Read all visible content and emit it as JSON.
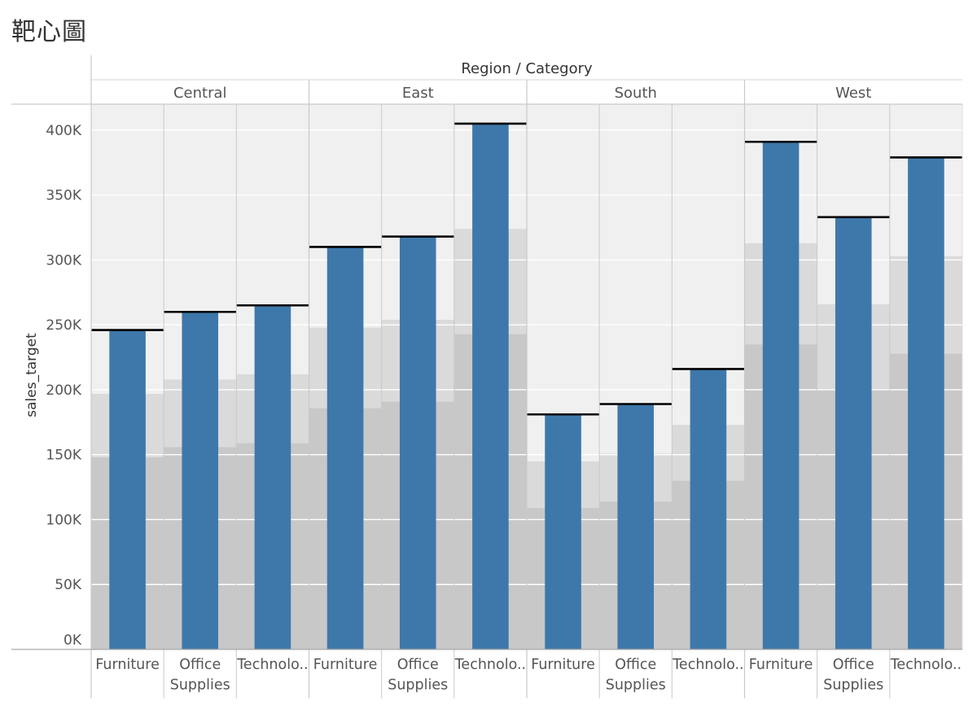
{
  "title": "靶心圖",
  "chart_data": {
    "type": "bar",
    "title": "靶心圖",
    "header_title": "Region / Category",
    "ylabel": "sales_target",
    "ylim": [
      0,
      420000
    ],
    "y_ticks": [
      0,
      50000,
      100000,
      150000,
      200000,
      250000,
      300000,
      350000,
      400000
    ],
    "y_tick_labels": [
      "0K",
      "50K",
      "100K",
      "150K",
      "200K",
      "250K",
      "300K",
      "350K",
      "400K"
    ],
    "grid": true,
    "regions": [
      {
        "name": "Central",
        "categories": [
          {
            "label_lines": [
              "Furniture"
            ],
            "target": 246000,
            "bands": [
              148000,
              197000,
              420000
            ]
          },
          {
            "label_lines": [
              "Office",
              "Supplies"
            ],
            "target": 260000,
            "bands": [
              156000,
              208000,
              420000
            ]
          },
          {
            "label_lines": [
              "Technolo.."
            ],
            "target": 265000,
            "bands": [
              159000,
              212000,
              420000
            ]
          }
        ]
      },
      {
        "name": "East",
        "categories": [
          {
            "label_lines": [
              "Furniture"
            ],
            "target": 310000,
            "bands": [
              186000,
              248000,
              420000
            ]
          },
          {
            "label_lines": [
              "Office",
              "Supplies"
            ],
            "target": 318000,
            "bands": [
              191000,
              254000,
              420000
            ]
          },
          {
            "label_lines": [
              "Technolo.."
            ],
            "target": 405000,
            "bands": [
              243000,
              324000,
              420000
            ]
          }
        ]
      },
      {
        "name": "South",
        "categories": [
          {
            "label_lines": [
              "Furniture"
            ],
            "target": 181000,
            "bands": [
              109000,
              145000,
              420000
            ]
          },
          {
            "label_lines": [
              "Office",
              "Supplies"
            ],
            "target": 189000,
            "bands": [
              114000,
              151000,
              420000
            ]
          },
          {
            "label_lines": [
              "Technolo.."
            ],
            "target": 216000,
            "bands": [
              130000,
              173000,
              420000
            ]
          }
        ]
      },
      {
        "name": "West",
        "categories": [
          {
            "label_lines": [
              "Furniture"
            ],
            "target": 391000,
            "bands": [
              235000,
              313000,
              420000
            ]
          },
          {
            "label_lines": [
              "Office",
              "Supplies"
            ],
            "target": 333000,
            "bands": [
              200000,
              266000,
              420000
            ]
          },
          {
            "label_lines": [
              "Technolo.."
            ],
            "target": 379000,
            "bands": [
              228000,
              303000,
              420000
            ]
          }
        ]
      }
    ],
    "colors": {
      "bar": "#3e78aa",
      "target_line": "#000000",
      "band_dark": "#c8c8c8",
      "band_mid": "#dadada",
      "band_light": "#f0f0f0",
      "grid": "#ffffff",
      "divider": "#c9c9c9"
    }
  }
}
